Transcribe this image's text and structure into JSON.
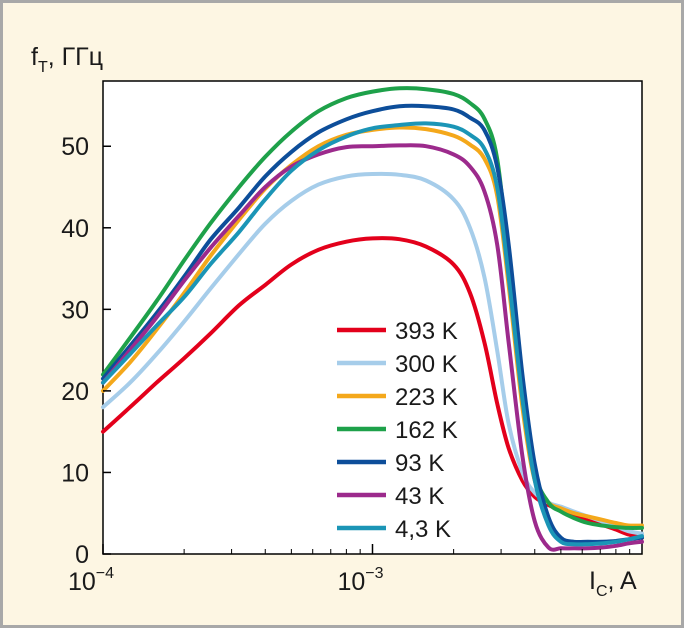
{
  "chart_data": {
    "type": "line",
    "ylabel": {
      "main": "f",
      "sub": "T",
      "rest": ", ГГц"
    },
    "xlabel": {
      "main": "I",
      "sub": "C",
      "rest": ", A"
    },
    "x_scale": "log",
    "xlim": [
      0.0001,
      0.01
    ],
    "ylim": [
      0,
      58
    ],
    "y_ticks": [
      {
        "value": 0,
        "label": "0"
      },
      {
        "value": 10,
        "label": "10"
      },
      {
        "value": 20,
        "label": "20"
      },
      {
        "value": 30,
        "label": "30"
      },
      {
        "value": 40,
        "label": "40"
      },
      {
        "value": 50,
        "label": "50"
      }
    ],
    "x_ticks": [
      {
        "value": 0.0001,
        "base": "10",
        "exp": "−4"
      },
      {
        "value": 0.001,
        "base": "10",
        "exp": "−3"
      }
    ],
    "grid": false,
    "legend_position": "bottom-center",
    "series": [
      {
        "name": "393 K",
        "color": "#e3001b",
        "x": [
          0.0001,
          0.000126,
          0.000158,
          0.0002,
          0.00025,
          0.00032,
          0.0004,
          0.0005,
          0.00063,
          0.0008,
          0.001,
          0.00126,
          0.00158,
          0.002,
          0.0023,
          0.0026,
          0.0029,
          0.0032,
          0.0036,
          0.004,
          0.0045,
          0.005,
          0.0056,
          0.0063,
          0.0071,
          0.008,
          0.0089,
          0.01
        ],
        "y": [
          15,
          18,
          21,
          24,
          27,
          30.5,
          33,
          35.5,
          37.3,
          38.3,
          38.7,
          38.6,
          37.7,
          35.5,
          32,
          26,
          18.5,
          13,
          9,
          7,
          6,
          5.4,
          4.8,
          4.2,
          3.6,
          3,
          2.4,
          2
        ]
      },
      {
        "name": "300 K",
        "color": "#a6cdea",
        "x": [
          0.0001,
          0.000126,
          0.000158,
          0.0002,
          0.00025,
          0.00032,
          0.0004,
          0.0005,
          0.00063,
          0.0008,
          0.001,
          0.00126,
          0.00158,
          0.002,
          0.0023,
          0.0026,
          0.0029,
          0.0032,
          0.0036,
          0.004,
          0.0045,
          0.005,
          0.0056,
          0.0063,
          0.0071,
          0.008,
          0.0089,
          0.01
        ],
        "y": [
          18,
          21,
          24.5,
          28.5,
          32.5,
          36.8,
          40.5,
          43.3,
          45.3,
          46.3,
          46.6,
          46.5,
          45.8,
          43.5,
          40,
          34,
          25,
          16,
          10,
          7.5,
          6.3,
          5.8,
          5.2,
          4.6,
          4,
          3.4,
          2.8,
          2.5
        ]
      },
      {
        "name": "223 K",
        "color": "#f4a81b",
        "x": [
          0.0001,
          0.000126,
          0.000158,
          0.0002,
          0.00025,
          0.00032,
          0.0004,
          0.0005,
          0.00063,
          0.0008,
          0.001,
          0.00126,
          0.00158,
          0.002,
          0.0023,
          0.0026,
          0.0029,
          0.0032,
          0.0036,
          0.004,
          0.0045,
          0.005,
          0.0056,
          0.0063,
          0.0071,
          0.008,
          0.0089,
          0.01
        ],
        "y": [
          20,
          23.5,
          27.5,
          32,
          36.5,
          41,
          44.8,
          47.7,
          50,
          51.4,
          52,
          52.3,
          52.1,
          51.3,
          50.2,
          48.5,
          44,
          33,
          18,
          9,
          6.3,
          5.6,
          5,
          4.6,
          4.2,
          3.8,
          3.5,
          3.5
        ]
      },
      {
        "name": "162 K",
        "color": "#1ea14a",
        "x": [
          0.0001,
          0.000126,
          0.000158,
          0.0002,
          0.00025,
          0.00032,
          0.0004,
          0.0005,
          0.00063,
          0.0008,
          0.001,
          0.00126,
          0.00158,
          0.002,
          0.0023,
          0.0026,
          0.0029,
          0.0032,
          0.0036,
          0.004,
          0.0045,
          0.005,
          0.0056,
          0.0063,
          0.0071,
          0.008,
          0.0089,
          0.01
        ],
        "y": [
          22,
          26.5,
          31,
          36,
          40.5,
          45,
          48.7,
          51.8,
          54.3,
          55.9,
          56.7,
          57.1,
          57,
          56.4,
          55.3,
          53.4,
          48.5,
          36,
          20,
          10,
          6.3,
          5.2,
          4.4,
          3.8,
          3.5,
          3.3,
          3.2,
          3.2
        ]
      },
      {
        "name": "93 K",
        "color": "#0d4e9a",
        "x": [
          0.0001,
          0.000126,
          0.000158,
          0.0002,
          0.00025,
          0.00032,
          0.0004,
          0.0005,
          0.00063,
          0.0008,
          0.001,
          0.00126,
          0.00158,
          0.002,
          0.0023,
          0.0026,
          0.0029,
          0.0032,
          0.0036,
          0.004,
          0.0045,
          0.005,
          0.0056,
          0.0063,
          0.0071,
          0.008,
          0.0089,
          0.01
        ],
        "y": [
          21.5,
          25.5,
          29.5,
          34,
          38.5,
          42.5,
          46.3,
          49.3,
          51.7,
          53.3,
          54.3,
          54.9,
          54.9,
          54.5,
          53.5,
          52,
          47.5,
          38,
          22,
          11,
          4.5,
          2,
          1.5,
          1.5,
          1.5,
          1.6,
          1.8,
          2
        ]
      },
      {
        "name": "43 K",
        "color": "#9c2a8c",
        "x": [
          0.0001,
          0.000126,
          0.000158,
          0.0002,
          0.00025,
          0.00032,
          0.0004,
          0.0005,
          0.00063,
          0.0008,
          0.001,
          0.00126,
          0.00158,
          0.002,
          0.0023,
          0.0026,
          0.0029,
          0.0032,
          0.0036,
          0.004,
          0.0045,
          0.005,
          0.0056,
          0.0063,
          0.0071,
          0.008,
          0.0089,
          0.01
        ],
        "y": [
          21,
          25,
          29,
          33.5,
          37.5,
          41.5,
          45,
          47.5,
          49,
          49.9,
          50,
          50.1,
          50,
          49,
          47.5,
          44.5,
          38,
          26,
          12,
          4,
          0.8,
          0.7,
          0.7,
          0.7,
          0.8,
          1,
          1.3,
          1.5
        ]
      },
      {
        "name": "4,3 K",
        "color": "#1b95b6",
        "x": [
          0.0001,
          0.000126,
          0.000158,
          0.0002,
          0.00025,
          0.00032,
          0.0004,
          0.0005,
          0.00063,
          0.0008,
          0.001,
          0.00126,
          0.00158,
          0.002,
          0.0023,
          0.0026,
          0.0029,
          0.0032,
          0.0036,
          0.004,
          0.0045,
          0.005,
          0.0056,
          0.0063,
          0.0071,
          0.008,
          0.0089,
          0.01
        ],
        "y": [
          21,
          24.5,
          28,
          31.5,
          35.5,
          39.5,
          43.5,
          47,
          49.5,
          51.2,
          52.2,
          52.6,
          52.8,
          52.4,
          51.4,
          49.7,
          45,
          34,
          19,
          9,
          3.5,
          1.5,
          1.2,
          1.2,
          1.3,
          1.5,
          1.8,
          2.2
        ]
      }
    ]
  }
}
